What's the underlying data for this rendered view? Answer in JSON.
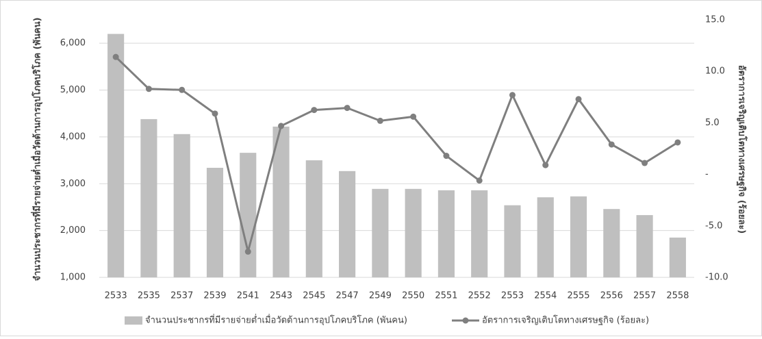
{
  "chart_data": {
    "type": "bar_line",
    "ylabel": "จำนวนประชากรที่มีรายจ่ายต่ำเมื่อวัดด้านการอุปโภคบริโภค (พันคน)",
    "y2label": "อัตราการเจริญเติบโตทางเศรษฐกิจ  (ร้อยละ)",
    "categories": [
      "2533",
      "2535",
      "2537",
      "2539",
      "2541",
      "2543",
      "2545",
      "2547",
      "2549",
      "2550",
      "2551",
      "2552",
      "2553",
      "2554",
      "2555",
      "2556",
      "2557",
      "2558"
    ],
    "series": [
      {
        "name": "จำนวนประชากรที่มีรายจ่ายต่ำเมื่อวัดด้านการอุปโภคบริโภค (พันคน)",
        "color": "#bfbfbf",
        "values": [
          6200,
          4380,
          4060,
          3340,
          3660,
          4220,
          3500,
          3270,
          2890,
          2890,
          2860,
          2860,
          2540,
          2710,
          2730,
          2460,
          2330,
          1850
        ]
      },
      {
        "name": "อัตราการเจริญเติบโตทางเศรษฐกิจ  (ร้อยละ)",
        "color": "#7f7f7f",
        "axis": "y2",
        "values": [
          11.4,
          8.3,
          8.2,
          5.9,
          -7.5,
          4.7,
          6.25,
          6.45,
          5.2,
          5.6,
          1.8,
          -0.6,
          7.7,
          0.9,
          7.3,
          2.9,
          1.1,
          3.1
        ]
      }
    ],
    "ylim": [
      1000,
      6500
    ],
    "yticks": [
      {
        "value": 1000,
        "label": "1,000"
      },
      {
        "value": 2000,
        "label": "2,000"
      },
      {
        "value": 3000,
        "label": "3,000"
      },
      {
        "value": 4000,
        "label": "4,000"
      },
      {
        "value": 5000,
        "label": "5,000"
      },
      {
        "value": 6000,
        "label": "6,000"
      }
    ],
    "y2lim": [
      -10,
      15
    ],
    "y2ticks": [
      {
        "value": -10,
        "label": "-10.0"
      },
      {
        "value": -5,
        "label": "-5.0"
      },
      {
        "value": 0,
        "label": "-"
      },
      {
        "value": 5,
        "label": "5.0"
      },
      {
        "value": 10,
        "label": "10.0"
      },
      {
        "value": 15,
        "label": "15.0"
      }
    ],
    "grid": true
  }
}
